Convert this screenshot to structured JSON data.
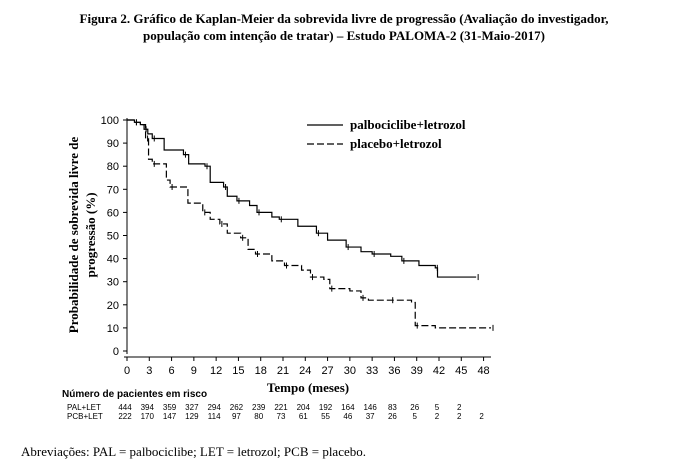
{
  "figure": {
    "caption_line1": "Figura 2. Gráfico de Kaplan-Meier da sobrevida livre de progressão (Avaliação do investigador,",
    "caption_line2": "população com intenção de tratar) – Estudo PALOMA-2 (31-Maio-2017)",
    "footnote": "Abreviações: PAL = palbociclibe; LET = letrozol; PCB = placebo."
  },
  "chart_data": {
    "type": "line",
    "title": "",
    "xlabel": "Tempo (meses)",
    "ylabel_line1": "Probabilidade de sobrevida livre de",
    "ylabel_line2": "progressão (%)",
    "xlim": [
      0,
      49
    ],
    "ylim": [
      0,
      100
    ],
    "xticks": [
      "0",
      "3",
      "6",
      "9",
      "12",
      "15",
      "18",
      "21",
      "24",
      "27",
      "30",
      "33",
      "36",
      "39",
      "42",
      "45",
      "48"
    ],
    "yticks": [
      "0",
      "10",
      "20",
      "30",
      "40",
      "50",
      "60",
      "70",
      "80",
      "90",
      "100"
    ],
    "legend_position": "top-right",
    "series": [
      {
        "name": "palbociclibe+letrozol",
        "style": "solid",
        "points": [
          [
            0,
            100
          ],
          [
            1,
            99
          ],
          [
            1.8,
            98
          ],
          [
            2.3,
            96
          ],
          [
            2.8,
            94
          ],
          [
            3.4,
            92
          ],
          [
            5,
            87
          ],
          [
            7.6,
            85
          ],
          [
            8.3,
            81
          ],
          [
            10.5,
            80
          ],
          [
            11.2,
            73
          ],
          [
            13,
            71
          ],
          [
            13.5,
            67
          ],
          [
            14.8,
            65
          ],
          [
            16.5,
            63
          ],
          [
            17.5,
            60
          ],
          [
            19.5,
            58
          ],
          [
            20.5,
            57
          ],
          [
            23,
            54
          ],
          [
            25.5,
            51
          ],
          [
            27,
            48
          ],
          [
            29.5,
            45
          ],
          [
            31.5,
            43
          ],
          [
            33,
            42
          ],
          [
            35.5,
            41
          ],
          [
            37,
            39
          ],
          [
            39.3,
            37
          ],
          [
            41.5,
            36
          ],
          [
            41.8,
            32
          ],
          [
            47,
            32
          ]
        ]
      },
      {
        "name": "placebo+letrozol",
        "style": "dashed",
        "points": [
          [
            0,
            100
          ],
          [
            1,
            99
          ],
          [
            1.8,
            98
          ],
          [
            2.5,
            92
          ],
          [
            2.9,
            83
          ],
          [
            3.4,
            81
          ],
          [
            5.3,
            74
          ],
          [
            5.8,
            71
          ],
          [
            8.2,
            64
          ],
          [
            10.2,
            60
          ],
          [
            11.2,
            57
          ],
          [
            12.5,
            55
          ],
          [
            13.5,
            51
          ],
          [
            15.3,
            49
          ],
          [
            16.3,
            44
          ],
          [
            17.3,
            42
          ],
          [
            19.5,
            39
          ],
          [
            21.2,
            37
          ],
          [
            23.5,
            35
          ],
          [
            24.7,
            32
          ],
          [
            26.5,
            31
          ],
          [
            27.3,
            27
          ],
          [
            30,
            26
          ],
          [
            31.5,
            23
          ],
          [
            32.5,
            22
          ],
          [
            35.5,
            22
          ],
          [
            38.3,
            21
          ],
          [
            38.8,
            11
          ],
          [
            41.5,
            10
          ],
          [
            49,
            10
          ]
        ]
      }
    ]
  },
  "risk_table": {
    "title": "Número de pacientes em risco",
    "times": [
      0,
      3,
      6,
      9,
      12,
      15,
      18,
      21,
      24,
      27,
      30,
      33,
      36,
      39,
      42,
      45,
      48
    ],
    "rows": [
      {
        "label": "PAL+LET",
        "values": [
          "444",
          "394",
          "359",
          "327",
          "294",
          "262",
          "239",
          "221",
          "204",
          "192",
          "164",
          "146",
          "83",
          "26",
          "5",
          "2",
          ""
        ]
      },
      {
        "label": "PCB+LET",
        "values": [
          "222",
          "170",
          "147",
          "129",
          "114",
          "97",
          "80",
          "73",
          "61",
          "55",
          "46",
          "37",
          "26",
          "5",
          "2",
          "2",
          "2"
        ]
      }
    ]
  }
}
